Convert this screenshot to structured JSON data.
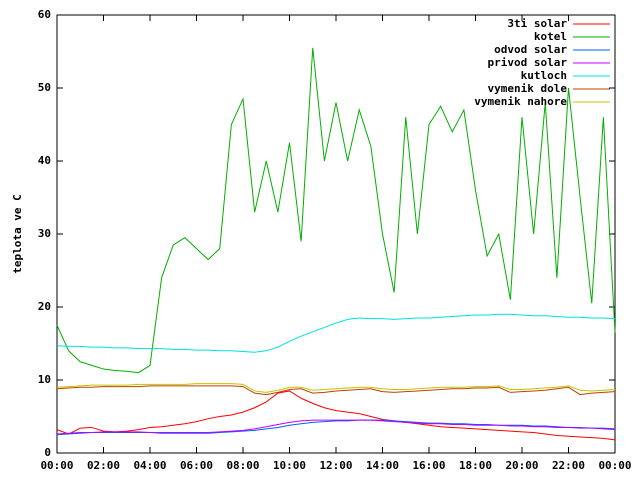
{
  "chart_data": {
    "type": "line",
    "y_label": "teplota ve C",
    "x": [
      0,
      0.5,
      1,
      1.5,
      2,
      2.5,
      3,
      3.5,
      4,
      4.5,
      5,
      5.5,
      6,
      6.5,
      7,
      7.5,
      8,
      8.5,
      9,
      9.5,
      10,
      10.5,
      11,
      11.5,
      12,
      12.5,
      13,
      13.5,
      14,
      14.5,
      15,
      15.5,
      16,
      16.5,
      17,
      17.5,
      18,
      18.5,
      19,
      19.5,
      20,
      20.5,
      21,
      21.5,
      22,
      22.5,
      23,
      23.5,
      24
    ],
    "xlim": [
      0,
      24
    ],
    "xticks": [
      {
        "value": 0,
        "label": "00:00"
      },
      {
        "value": 2,
        "label": "02:00"
      },
      {
        "value": 4,
        "label": "04:00"
      },
      {
        "value": 6,
        "label": "06:00"
      },
      {
        "value": 8,
        "label": "08:00"
      },
      {
        "value": 10,
        "label": "10:00"
      },
      {
        "value": 12,
        "label": "12:00"
      },
      {
        "value": 14,
        "label": "14:00"
      },
      {
        "value": 16,
        "label": "16:00"
      },
      {
        "value": 18,
        "label": "18:00"
      },
      {
        "value": 20,
        "label": "20:00"
      },
      {
        "value": 22,
        "label": "22:00"
      },
      {
        "value": 24,
        "label": "00:00"
      }
    ],
    "ylim": [
      0,
      60
    ],
    "yticks": [
      0,
      10,
      20,
      30,
      40,
      50,
      60
    ],
    "legend": "top-right",
    "series": [
      {
        "name": "3ti solar",
        "color": "#ff0000",
        "values": [
          3.2,
          2.6,
          3.4,
          3.5,
          3.0,
          2.9,
          3.0,
          3.2,
          3.5,
          3.6,
          3.8,
          4.0,
          4.3,
          4.7,
          5.0,
          5.2,
          5.6,
          6.2,
          7.0,
          8.2,
          8.5,
          7.5,
          6.8,
          6.2,
          5.8,
          5.6,
          5.4,
          5.0,
          4.6,
          4.4,
          4.2,
          4.0,
          3.8,
          3.6,
          3.5,
          3.4,
          3.3,
          3.2,
          3.1,
          3.0,
          2.9,
          2.8,
          2.6,
          2.4,
          2.3,
          2.2,
          2.1,
          2.0,
          1.8
        ]
      },
      {
        "name": "kotel",
        "color": "#00b000",
        "values": [
          17.5,
          14,
          12.5,
          12,
          11.5,
          11.3,
          11.2,
          11,
          12,
          24,
          28.5,
          29.5,
          28,
          26.5,
          28,
          45,
          48.5,
          33,
          40,
          33,
          42.5,
          29,
          55.5,
          40,
          48,
          40,
          47,
          42,
          30,
          22,
          46,
          30,
          45,
          47.5,
          44,
          47,
          36,
          27,
          30,
          21,
          46,
          30,
          48,
          24,
          50,
          35,
          20.5,
          46,
          16.5
        ]
      },
      {
        "name": "odvod solar",
        "color": "#0060ff",
        "values": [
          2.5,
          2.6,
          2.7,
          2.8,
          2.8,
          2.8,
          2.8,
          2.8,
          2.8,
          2.7,
          2.7,
          2.7,
          2.7,
          2.7,
          2.8,
          2.9,
          3.0,
          3.1,
          3.3,
          3.5,
          3.8,
          4.0,
          4.2,
          4.3,
          4.4,
          4.4,
          4.5,
          4.5,
          4.5,
          4.4,
          4.3,
          4.2,
          4.1,
          4.1,
          4.0,
          4.0,
          3.9,
          3.9,
          3.8,
          3.8,
          3.8,
          3.7,
          3.7,
          3.6,
          3.5,
          3.5,
          3.4,
          3.4,
          3.3
        ]
      },
      {
        "name": "privod solar",
        "color": "#c000ff",
        "values": [
          2.6,
          2.7,
          2.8,
          2.8,
          2.9,
          2.9,
          2.9,
          2.9,
          2.8,
          2.8,
          2.8,
          2.8,
          2.8,
          2.8,
          2.9,
          3.0,
          3.1,
          3.3,
          3.6,
          3.9,
          4.2,
          4.4,
          4.5,
          4.5,
          4.5,
          4.5,
          4.5,
          4.5,
          4.4,
          4.3,
          4.2,
          4.1,
          4.0,
          4.0,
          3.9,
          3.9,
          3.8,
          3.8,
          3.8,
          3.7,
          3.7,
          3.6,
          3.6,
          3.5,
          3.5,
          3.4,
          3.4,
          3.3,
          3.2
        ]
      },
      {
        "name": "kutloch",
        "color": "#00e0e0",
        "values": [
          14.7,
          14.6,
          14.6,
          14.5,
          14.5,
          14.4,
          14.4,
          14.3,
          14.3,
          14.3,
          14.2,
          14.2,
          14.1,
          14.1,
          14.0,
          14.0,
          13.9,
          13.8,
          14.0,
          14.5,
          15.3,
          16.0,
          16.6,
          17.2,
          17.8,
          18.3,
          18.5,
          18.4,
          18.4,
          18.3,
          18.4,
          18.5,
          18.5,
          18.6,
          18.7,
          18.8,
          18.9,
          18.9,
          19.0,
          19.0,
          18.9,
          18.8,
          18.8,
          18.7,
          18.6,
          18.6,
          18.5,
          18.5,
          18.4
        ]
      },
      {
        "name": "vymenik dole",
        "color": "#c04000",
        "values": [
          8.8,
          8.9,
          9.0,
          9.0,
          9.1,
          9.1,
          9.1,
          9.1,
          9.2,
          9.2,
          9.2,
          9.2,
          9.2,
          9.2,
          9.2,
          9.2,
          9.1,
          8.2,
          8.0,
          8.3,
          8.7,
          8.8,
          8.2,
          8.3,
          8.5,
          8.6,
          8.7,
          8.8,
          8.4,
          8.3,
          8.4,
          8.5,
          8.6,
          8.7,
          8.8,
          8.8,
          8.9,
          8.9,
          9.0,
          8.3,
          8.4,
          8.5,
          8.6,
          8.8,
          9.0,
          8.0,
          8.2,
          8.3,
          8.4
        ]
      },
      {
        "name": "vymenik nahore",
        "color": "#c8c000",
        "values": [
          9.0,
          9.1,
          9.2,
          9.3,
          9.3,
          9.3,
          9.3,
          9.4,
          9.4,
          9.4,
          9.4,
          9.4,
          9.5,
          9.5,
          9.5,
          9.5,
          9.4,
          8.5,
          8.3,
          8.6,
          9.0,
          9.0,
          8.6,
          8.7,
          8.8,
          8.9,
          9.0,
          9.0,
          8.8,
          8.7,
          8.7,
          8.8,
          8.9,
          9.0,
          9.0,
          9.0,
          9.1,
          9.1,
          9.2,
          8.7,
          8.7,
          8.8,
          8.9,
          9.0,
          9.2,
          8.6,
          8.5,
          8.6,
          8.7
        ]
      }
    ]
  }
}
